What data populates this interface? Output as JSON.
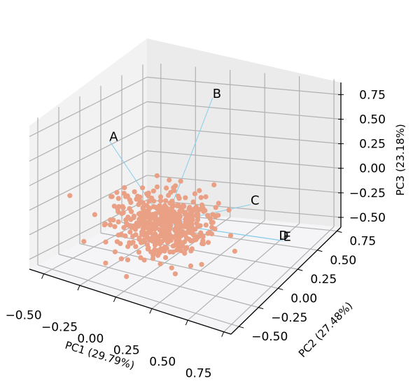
{
  "chart_data": {
    "type": "scatter",
    "projection": "3d",
    "title": "",
    "xlabel": "PC1 (29.79%)",
    "ylabel": "PC2 (27.48%)",
    "zlabel": "PC3 (23.18%)",
    "x_ticks": [
      "−0.50",
      "−0.25",
      "0.00",
      "0.25",
      "0.50",
      "0.75"
    ],
    "y_ticks": [
      "−0.50",
      "−0.25",
      "0.00",
      "0.25",
      "0.50",
      "0.75"
    ],
    "z_ticks": [
      "−0.50",
      "−0.25",
      "0.00",
      "0.25",
      "0.50",
      "0.75"
    ],
    "xlim": [
      -0.6,
      0.8
    ],
    "ylim": [
      -0.6,
      0.8
    ],
    "zlim": [
      -0.6,
      0.9
    ],
    "grid": true,
    "point_color": "#e9a084",
    "vector_color": "#87ceeb",
    "n_points_approx": 500,
    "cluster_center": [
      0.0,
      0.0,
      -0.2
    ],
    "loading_vectors": [
      {
        "label": "A",
        "x": -0.45,
        "y": 0.1,
        "z": 0.45
      },
      {
        "label": "B",
        "x": 0.05,
        "y": 0.5,
        "z": 0.8
      },
      {
        "label": "C",
        "x": 0.55,
        "y": 0.1,
        "z": 0.1
      },
      {
        "label": "D",
        "x": 0.75,
        "y": 0.1,
        "z": -0.2
      },
      {
        "label": "E",
        "x": 0.78,
        "y": 0.1,
        "z": -0.2
      }
    ]
  }
}
